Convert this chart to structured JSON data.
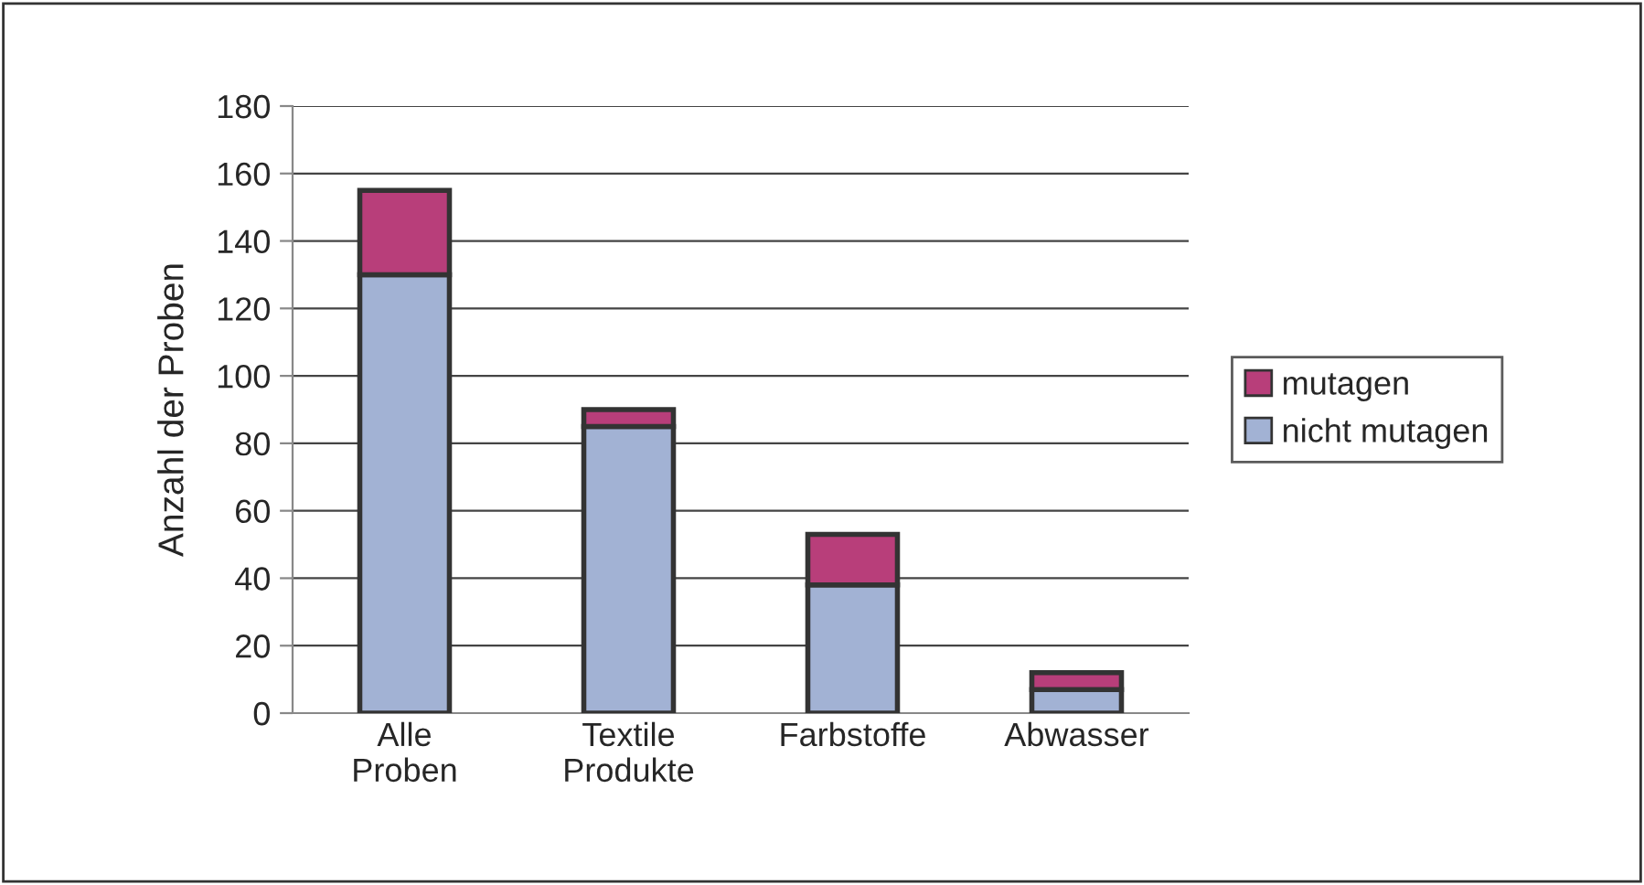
{
  "chart_data": {
    "type": "bar",
    "stacked": true,
    "ylabel": "Anzahl der Proben",
    "categories": [
      "Alle\nProben",
      "Textile\nProdukte",
      "Farbstoffe",
      "Abwasser"
    ],
    "series": [
      {
        "name": "nicht mutagen",
        "color": "#a2b2d4",
        "values": [
          130,
          85,
          38,
          7
        ]
      },
      {
        "name": "mutagen",
        "color": "#b83e7a",
        "values": [
          25,
          5,
          15,
          5
        ]
      }
    ],
    "ylim": [
      0,
      180
    ],
    "yticks": [
      0,
      20,
      40,
      60,
      80,
      100,
      120,
      140,
      160,
      180
    ],
    "grid": "y",
    "legend": "right"
  }
}
